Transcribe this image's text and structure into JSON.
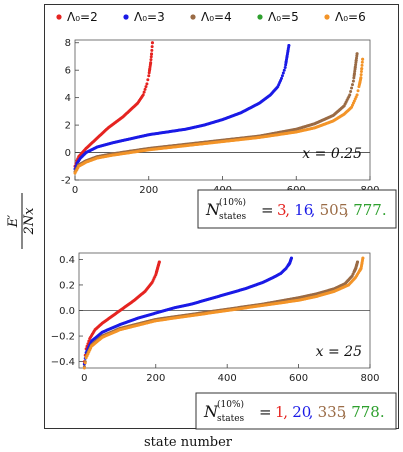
{
  "legend": [
    {
      "label": "Λ₀=2",
      "color": "#e52421"
    },
    {
      "label": "Λ₀=3",
      "color": "#1a1ae6"
    },
    {
      "label": "Λ₀=4",
      "color": "#9a6b45"
    },
    {
      "label": "Λ₀=5",
      "color": "#2ea02e"
    },
    {
      "label": "Λ₀=6",
      "color": "#f39428"
    }
  ],
  "ylabel_num": "E′",
  "ylabel_den": "2Nx",
  "xlabel": "state number",
  "nstates_symbol": "N",
  "nstates_sup": "(10%)",
  "nstates_sub": "states",
  "nstates_eq": "=",
  "chart_data": [
    {
      "type": "scatter",
      "annotation": "x = 0.25",
      "xlim": [
        0,
        800
      ],
      "ylim": [
        -2,
        8.2
      ],
      "xticks": [
        0,
        200,
        400,
        600,
        800
      ],
      "yticks": [
        -2,
        0,
        2,
        4,
        6,
        8
      ],
      "series": [
        {
          "name": "Λ₀=2",
          "color": "#e52421",
          "x": [
            0,
            5,
            10,
            20,
            30,
            50,
            70,
            90,
            110,
            130,
            150,
            170,
            185,
            195,
            200,
            205,
            208,
            210
          ],
          "y": [
            -1.0,
            -0.6,
            -0.3,
            0.0,
            0.3,
            0.8,
            1.3,
            1.8,
            2.2,
            2.6,
            3.1,
            3.6,
            4.2,
            5.0,
            5.6,
            6.5,
            7.3,
            8.0
          ]
        },
        {
          "name": "Λ₀=3",
          "color": "#1a1ae6",
          "x": [
            0,
            5,
            15,
            30,
            60,
            100,
            150,
            200,
            250,
            300,
            350,
            400,
            450,
            500,
            530,
            550,
            560,
            570,
            575,
            580
          ],
          "y": [
            -1.2,
            -0.8,
            -0.4,
            0.0,
            0.4,
            0.7,
            1.0,
            1.3,
            1.5,
            1.7,
            2.0,
            2.4,
            2.9,
            3.6,
            4.2,
            4.8,
            5.4,
            6.2,
            7.0,
            7.8
          ]
        },
        {
          "name": "Λ₀=4",
          "color": "#9a6b45",
          "x": [
            0,
            10,
            30,
            60,
            100,
            150,
            200,
            300,
            400,
            500,
            600,
            650,
            700,
            730,
            745,
            755,
            760,
            765
          ],
          "y": [
            -1.4,
            -0.9,
            -0.6,
            -0.3,
            -0.1,
            0.1,
            0.3,
            0.6,
            0.9,
            1.2,
            1.7,
            2.1,
            2.7,
            3.4,
            4.2,
            5.2,
            6.2,
            7.2
          ]
        },
        {
          "name": "Λ₀=6",
          "color": "#f39428",
          "x": [
            0,
            10,
            30,
            60,
            100,
            150,
            200,
            300,
            400,
            500,
            600,
            650,
            700,
            730,
            750,
            765,
            775,
            780
          ],
          "y": [
            -1.5,
            -1.0,
            -0.7,
            -0.4,
            -0.2,
            0.0,
            0.2,
            0.5,
            0.8,
            1.1,
            1.5,
            1.8,
            2.3,
            2.8,
            3.3,
            4.2,
            5.4,
            6.8
          ]
        }
      ],
      "nstates": [
        {
          "value": "3",
          "color": "#e52421"
        },
        {
          "value": "16",
          "color": "#1a1ae6"
        },
        {
          "value": "505",
          "color": "#9a6b45"
        },
        {
          "value": "777.",
          "color": "#2ea02e"
        }
      ]
    },
    {
      "type": "scatter",
      "annotation": "x = 25",
      "xlim": [
        -15,
        800
      ],
      "ylim": [
        -0.45,
        0.45
      ],
      "xticks": [
        0,
        200,
        400,
        600,
        800
      ],
      "yticks": [
        -0.4,
        -0.2,
        0.0,
        0.2,
        0.4
      ],
      "ytick_labels": [
        "−0.4",
        "−0.2",
        "0.0",
        "0.2",
        "0.4"
      ],
      "series": [
        {
          "name": "Λ₀=2",
          "color": "#e52421",
          "x": [
            0,
            5,
            15,
            30,
            50,
            80,
            110,
            140,
            170,
            190,
            200,
            205,
            210
          ],
          "y": [
            -0.4,
            -0.3,
            -0.22,
            -0.15,
            -0.1,
            -0.04,
            0.02,
            0.08,
            0.15,
            0.22,
            0.28,
            0.33,
            0.38
          ]
        },
        {
          "name": "Λ₀=3",
          "color": "#1a1ae6",
          "x": [
            0,
            5,
            20,
            50,
            100,
            150,
            200,
            250,
            300,
            350,
            400,
            450,
            500,
            530,
            550,
            565,
            575,
            580
          ],
          "y": [
            -0.42,
            -0.33,
            -0.24,
            -0.17,
            -0.11,
            -0.06,
            -0.02,
            0.02,
            0.05,
            0.09,
            0.13,
            0.17,
            0.22,
            0.26,
            0.29,
            0.33,
            0.37,
            0.41
          ]
        },
        {
          "name": "Λ₀=4",
          "color": "#9a6b45",
          "x": [
            0,
            5,
            20,
            50,
            100,
            200,
            300,
            400,
            500,
            600,
            650,
            700,
            730,
            750,
            760,
            765
          ],
          "y": [
            -0.44,
            -0.36,
            -0.27,
            -0.2,
            -0.14,
            -0.07,
            -0.03,
            0.01,
            0.05,
            0.1,
            0.13,
            0.17,
            0.21,
            0.27,
            0.33,
            0.38
          ]
        },
        {
          "name": "Λ₀=6",
          "color": "#f39428",
          "x": [
            0,
            5,
            20,
            50,
            100,
            200,
            300,
            400,
            500,
            600,
            650,
            700,
            740,
            760,
            775,
            780
          ],
          "y": [
            -0.45,
            -0.37,
            -0.28,
            -0.21,
            -0.15,
            -0.08,
            -0.04,
            0.0,
            0.04,
            0.08,
            0.11,
            0.15,
            0.2,
            0.26,
            0.33,
            0.41
          ]
        }
      ],
      "nstates": [
        {
          "value": "1",
          "color": "#e52421"
        },
        {
          "value": "20",
          "color": "#1a1ae6"
        },
        {
          "value": "335",
          "color": "#9a6b45"
        },
        {
          "value": "778.",
          "color": "#2ea02e"
        }
      ]
    }
  ]
}
